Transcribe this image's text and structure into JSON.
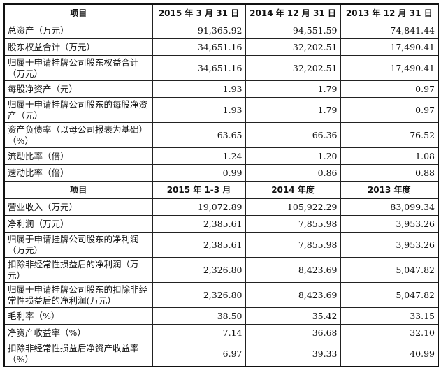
{
  "balance_section": {
    "headers": [
      "项目",
      "2015 年 3 月 31 日",
      "2014 年 12 月 31 日",
      "2013 年 12 月 31 日"
    ],
    "rows": [
      {
        "label": "总资产（万元）",
        "values": [
          "91,365.92",
          "94,551.59",
          "74,841.44"
        ]
      },
      {
        "label": "股东权益合计（万元）",
        "values": [
          "34,651.16",
          "32,202.51",
          "17,490.41"
        ]
      },
      {
        "label": "归属于申请挂牌公司股东权益合计（万元）",
        "values": [
          "34,651.16",
          "32,202.51",
          "17,490.41"
        ]
      },
      {
        "label": "每股净资产（元）",
        "values": [
          "1.93",
          "1.79",
          "0.97"
        ]
      },
      {
        "label": "归属于申请挂牌公司股东的每股净资产（元）",
        "values": [
          "1.93",
          "1.79",
          "0.97"
        ]
      },
      {
        "label": "资产负债率（以母公司报表为基础）（%）",
        "values": [
          "63.65",
          "66.36",
          "76.52"
        ]
      },
      {
        "label": "流动比率（倍）",
        "values": [
          "1.24",
          "1.20",
          "1.08"
        ]
      },
      {
        "label": "速动比率（倍）",
        "values": [
          "0.99",
          "0.86",
          "0.88"
        ]
      }
    ]
  },
  "income_section": {
    "headers": [
      "项目",
      "2015 年 1-3 月",
      "2014 年度",
      "2013 年度"
    ],
    "rows": [
      {
        "label": "营业收入（万元）",
        "values": [
          "19,072.89",
          "105,922.29",
          "83,099.34"
        ]
      },
      {
        "label": "净利润（万元）",
        "values": [
          "2,385.61",
          "7,855.98",
          "3,953.26"
        ]
      },
      {
        "label": "归属于申请挂牌公司股东的净利润（万元）",
        "values": [
          "2,385.61",
          "7,855.98",
          "3,953.26"
        ]
      },
      {
        "label": "扣除非经常性损益后的净利润（万元）",
        "values": [
          "2,326.80",
          "8,423.69",
          "5,047.82"
        ]
      },
      {
        "label": "归属于申请挂牌公司股东的扣除非经常性损益后的净利润(万元）",
        "values": [
          "2,326.80",
          "8,423.69",
          "5,047.82"
        ]
      },
      {
        "label": "毛利率（%）",
        "values": [
          "38.50",
          "35.42",
          "33.15"
        ]
      },
      {
        "label": "净资产收益率（%）",
        "values": [
          "7.14",
          "36.68",
          "32.10"
        ]
      },
      {
        "label": "扣除非经常性损益后净资产收益率（%）",
        "values": [
          "6.97",
          "39.33",
          "40.99"
        ]
      }
    ]
  }
}
